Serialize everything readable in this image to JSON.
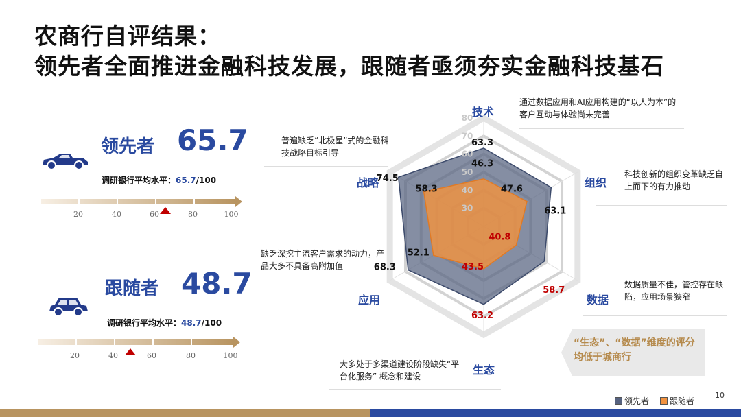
{
  "title": {
    "line1": "农商行自评结果：",
    "line2": "领先者全面推进金融科技发展，跟随者亟须夯实金融科技基石"
  },
  "leader": {
    "name": "领先者",
    "score": "65.7",
    "avg_prefix": "调研银行平均水平：",
    "avg_value": "65.7",
    "avg_suffix": "/100",
    "scale": [
      "20",
      "40",
      "60",
      "80",
      "100"
    ],
    "marker_value": 65.7
  },
  "follower": {
    "name": "跟随者",
    "score": "48.7",
    "avg_prefix": "调研银行平均水平：",
    "avg_value": "48.7",
    "avg_suffix": "/100",
    "scale": [
      "20",
      "40",
      "60",
      "80",
      "100"
    ],
    "marker_value": 48.7
  },
  "notes": {
    "tech": "通过数据应用和AI应用构建的“以人为本”的客户互动与体验尚未完善",
    "strategy": "普遍缺乏“北极星”式的金融科技战略目标引导",
    "org": "科技创新的组织变革缺乏自上而下的有力推动",
    "app": "缺乏深挖主流客户需求的动力，产品大多不具备高附加值",
    "data": "数据质量不佳，管控存在缺陷，应用场景狭窄",
    "eco": "大多处于多渠道建设阶段缺失“平台化服务” 概念和建设"
  },
  "callout": "“生态”、“数据”维度的评分均低于城商行",
  "page_number": "10",
  "colors": {
    "leader_fill": "#56627f",
    "follower_fill": "#f2923f",
    "accent_blue": "#2a4aa0",
    "highlight_red": "#c00000"
  },
  "chart_data": {
    "type": "radar",
    "axes": [
      "技术",
      "组织",
      "数据",
      "生态",
      "应用",
      "战略"
    ],
    "r_ticks": [
      "30",
      "40",
      "50",
      "60",
      "70",
      "80"
    ],
    "rlim": [
      20,
      80
    ],
    "series": [
      {
        "name": "领先者",
        "values": [
          63.3,
          63.1,
          58.7,
          63.2,
          68.3,
          74.5
        ]
      },
      {
        "name": "跟随者",
        "values": [
          46.3,
          47.6,
          40.8,
          43.5,
          52.1,
          58.3
        ]
      }
    ],
    "highlighted_values": [
      "58.7",
      "63.2",
      "40.8",
      "43.5"
    ],
    "legend_position": "bottom-right"
  }
}
